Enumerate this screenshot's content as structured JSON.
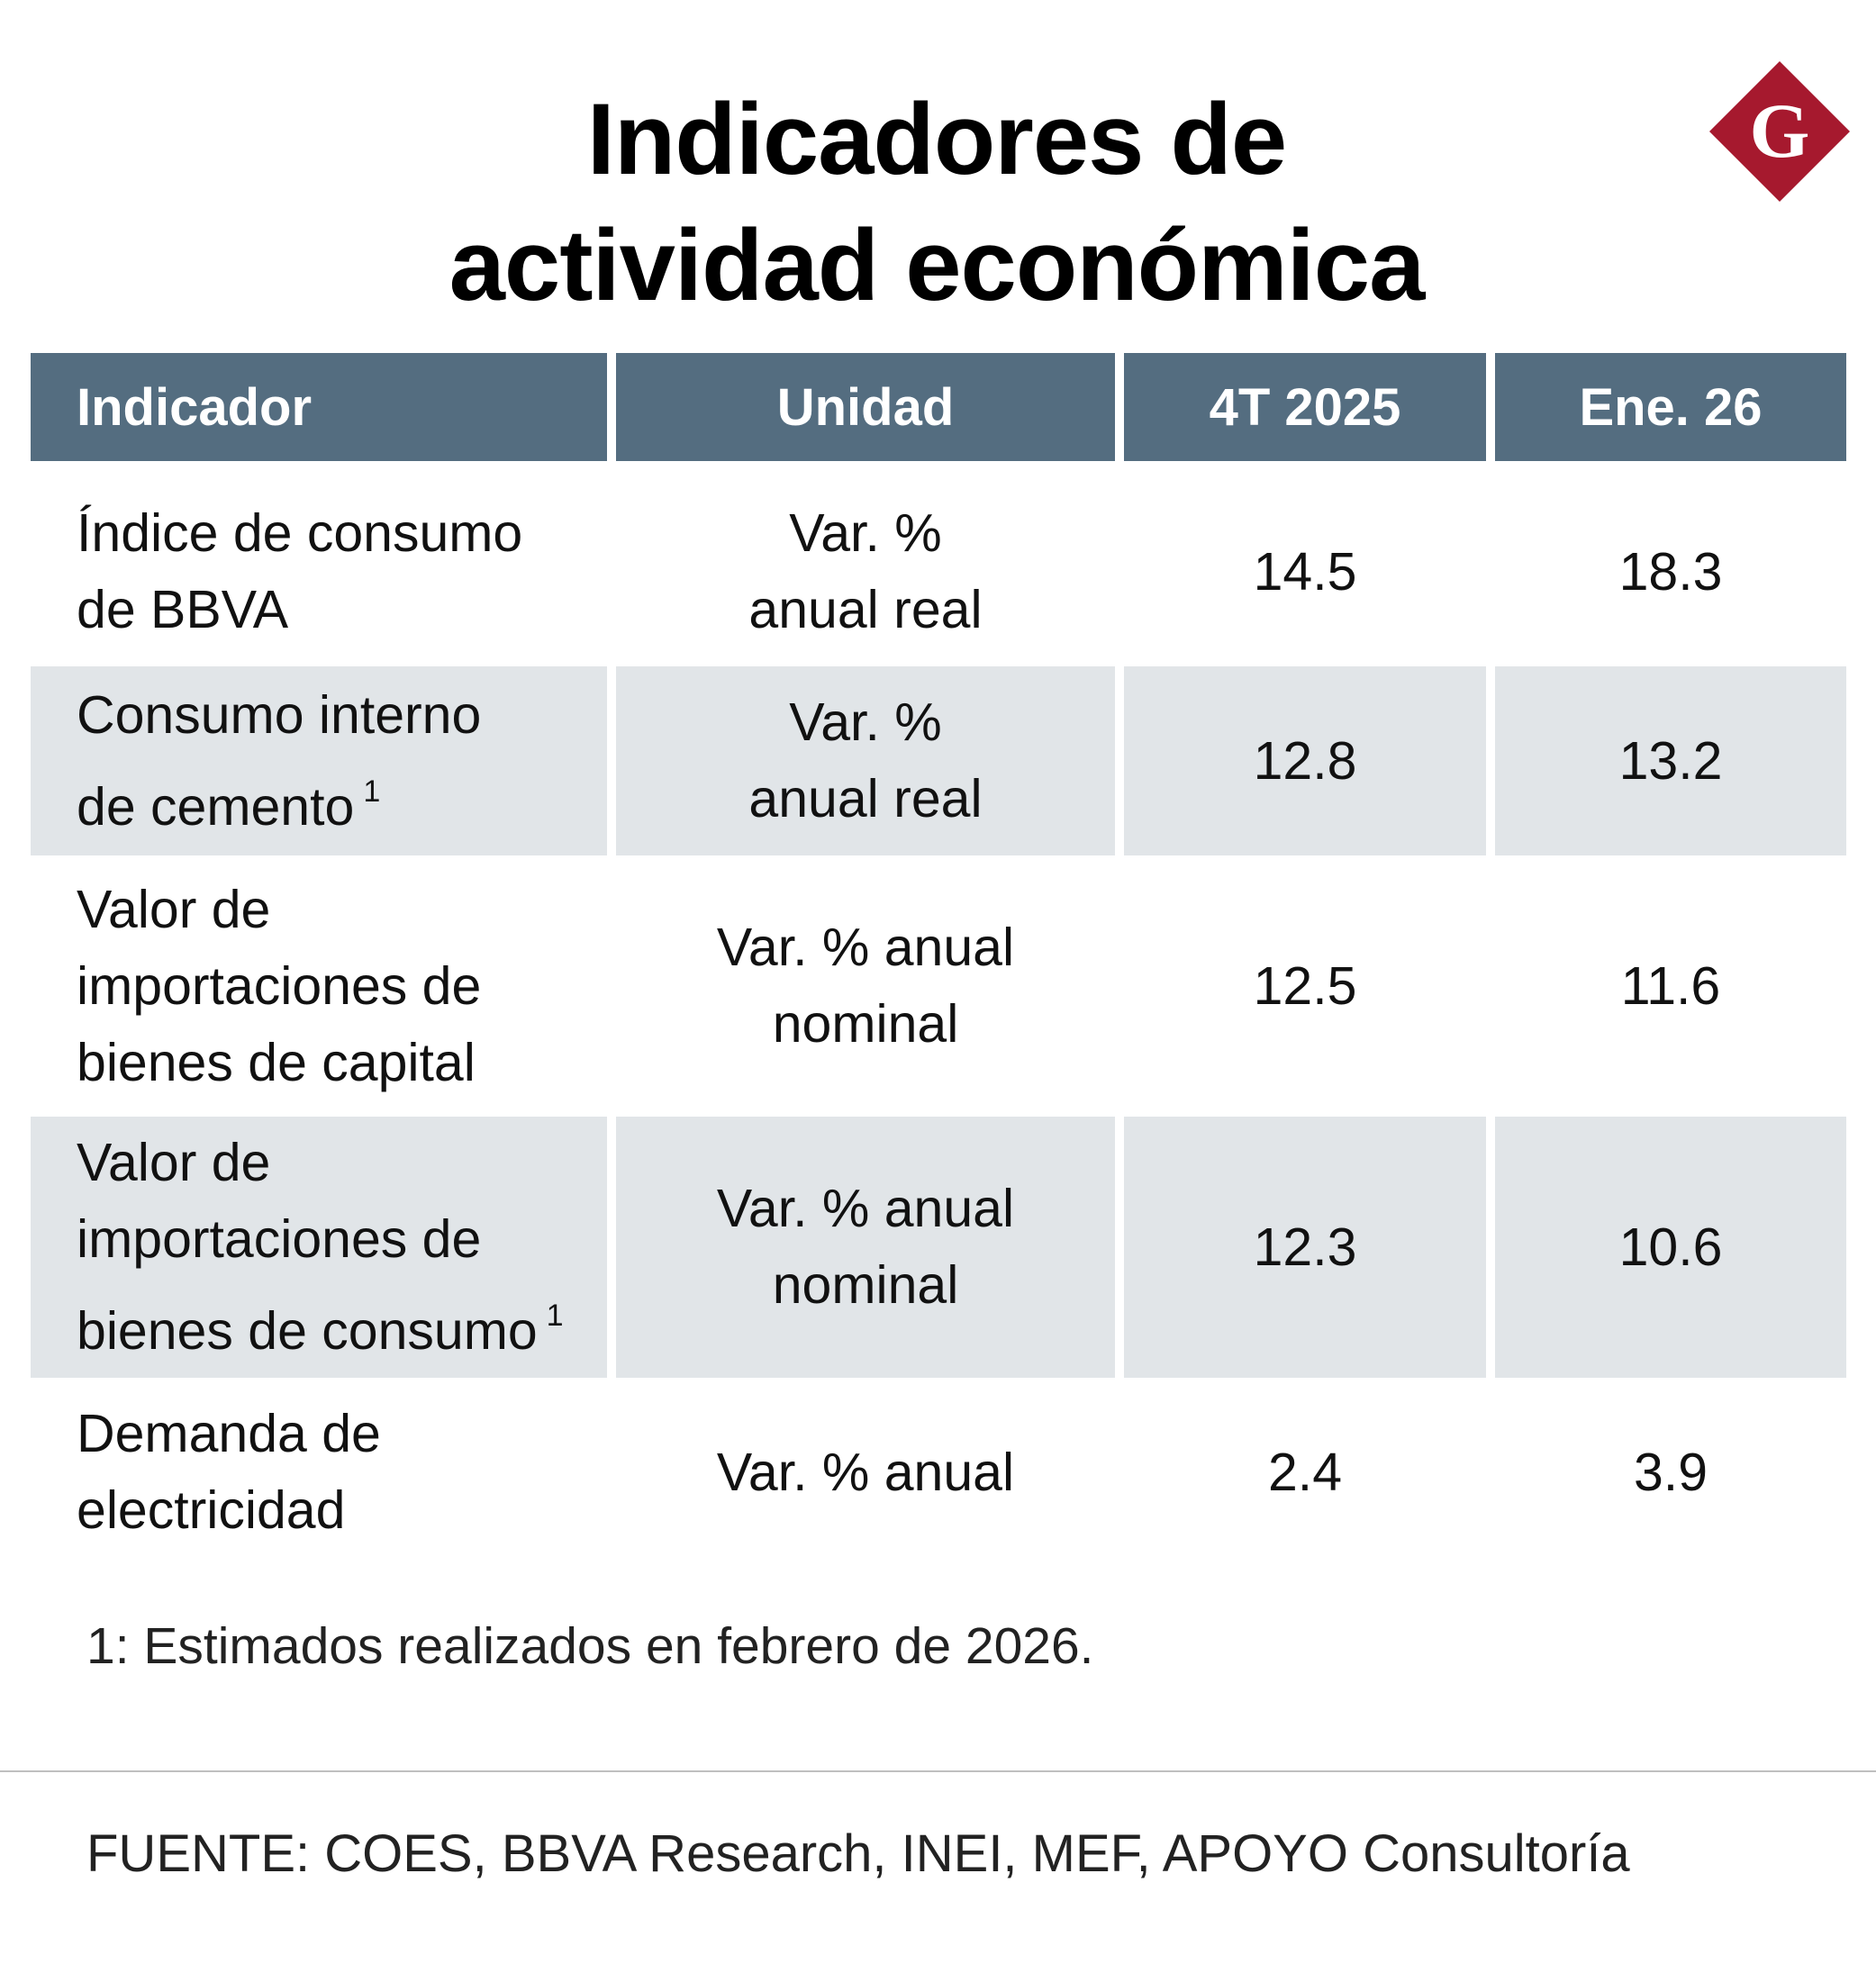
{
  "title": {
    "line1": "Indicadores de",
    "line2": "actividad económica"
  },
  "logo": {
    "letter": "G",
    "color": "#a6192e"
  },
  "chart_data": {
    "type": "table",
    "title": "Indicadores de actividad económica",
    "columns": [
      "Indicador",
      "Unidad",
      "4T 2025",
      "Ene. 26"
    ],
    "rows": [
      {
        "indicator": [
          "Índice de consumo",
          "de BBVA"
        ],
        "note": "",
        "unit": [
          "Var. %",
          "anual real"
        ],
        "q4_2025": "14.5",
        "jan_26": "18.3"
      },
      {
        "indicator": [
          "Consumo interno",
          "de cemento"
        ],
        "note": "1",
        "unit": [
          "Var. %",
          "anual real"
        ],
        "q4_2025": "12.8",
        "jan_26": "13.2"
      },
      {
        "indicator": [
          "Valor de",
          "importaciones de",
          "bienes de capital"
        ],
        "note": "",
        "unit": [
          "Var. % anual",
          "nominal"
        ],
        "q4_2025": "12.5",
        "jan_26": "11.6"
      },
      {
        "indicator": [
          "Valor de",
          "importaciones de",
          "bienes de consumo"
        ],
        "note": "1",
        "unit": [
          "Var. % anual",
          "nominal"
        ],
        "q4_2025": "12.3",
        "jan_26": "10.6"
      },
      {
        "indicator": [
          "Demanda de",
          "electricidad"
        ],
        "note": "",
        "unit": [
          "Var. % anual"
        ],
        "q4_2025": "2.4",
        "jan_26": "3.9"
      }
    ]
  },
  "footnote": "1: Estimados realizados en febrero de 2026.",
  "source": "FUENTE: COES, BBVA Research, INEI, MEF, APOYO Consultoría",
  "colors": {
    "header_bg": "#546d80",
    "header_text": "#ffffff",
    "shaded_row": "#e1e5e8"
  }
}
